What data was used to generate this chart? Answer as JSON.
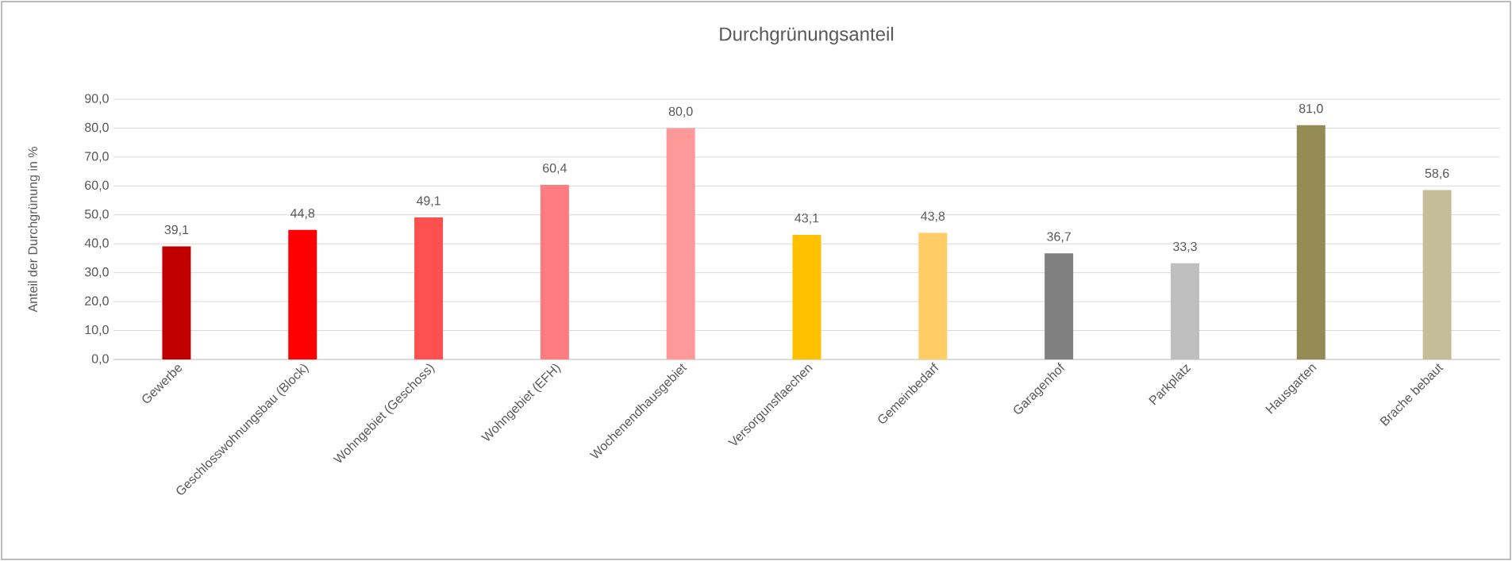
{
  "chart_data": {
    "type": "bar",
    "title": "Durchgrünungsanteil",
    "ylabel": "Anteil der Durchgrünung in %",
    "categories": [
      "Gewerbe",
      "Geschlosswohnungsbau (Block)",
      "Wohngebiet (Geschoss)",
      "Wohngebiet (EFH)",
      "Wochenendhausgebiet",
      "Versorgunsflaechen",
      "Gemeinbedarf",
      "Garagenhof",
      "Parkplatz",
      "Hausgarten",
      "Brache bebaut"
    ],
    "values": [
      39.1,
      44.8,
      49.1,
      60.4,
      80.0,
      43.1,
      43.8,
      36.7,
      33.3,
      81.0,
      58.6
    ],
    "value_labels": [
      "39,1",
      "44,8",
      "49,1",
      "60,4",
      "80,0",
      "43,1",
      "43,8",
      "36,7",
      "33,3",
      "81,0",
      "58,6"
    ],
    "colors": [
      "#c00000",
      "#ff0000",
      "#ff5050",
      "#ff7c80",
      "#ff9999",
      "#ffc000",
      "#ffcc66",
      "#808080",
      "#bfbfbf",
      "#948a54",
      "#c4bd97"
    ],
    "ylim": [
      0,
      90
    ],
    "yticks": [
      {
        "value": 0,
        "label": "0,0"
      },
      {
        "value": 10,
        "label": "10,0"
      },
      {
        "value": 20,
        "label": "20,0"
      },
      {
        "value": 30,
        "label": "30,0"
      },
      {
        "value": 40,
        "label": "40,0"
      },
      {
        "value": 50,
        "label": "50,0"
      },
      {
        "value": 60,
        "label": "60,0"
      },
      {
        "value": 70,
        "label": "70,0"
      },
      {
        "value": 80,
        "label": "80,0"
      },
      {
        "value": 90,
        "label": "90,0"
      }
    ],
    "grid": "y"
  }
}
